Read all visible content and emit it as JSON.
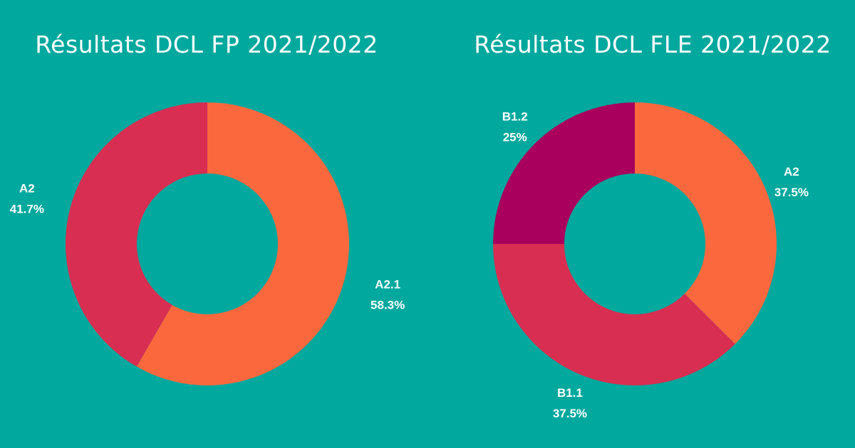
{
  "chart_data": [
    {
      "type": "pie",
      "title": "Résultats DCL FP 2021/2022",
      "labels": [
        "A2.1",
        "A2"
      ],
      "values": [
        58.3,
        41.7
      ],
      "value_labels": [
        "58.3%",
        "41.7%"
      ],
      "colors": [
        "#FC683E",
        "#D82E51"
      ]
    },
    {
      "type": "pie",
      "title": "Résultats DCL FLE 2021/2022",
      "labels": [
        "A2",
        "B1.1",
        "B1.2"
      ],
      "values": [
        37.5,
        37.5,
        25
      ],
      "value_labels": [
        "37.5%",
        "37.5%",
        "25%"
      ],
      "colors": [
        "#FC683E",
        "#D82E51",
        "#A8005C"
      ]
    }
  ]
}
